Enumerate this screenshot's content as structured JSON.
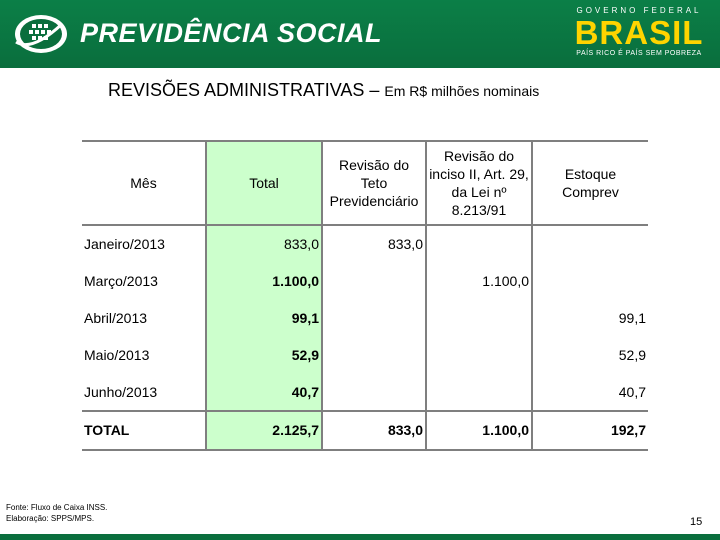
{
  "header": {
    "brand": "PREVIDÊNCIA SOCIAL",
    "gov_top": "GOVERNO FEDERAL",
    "gov_name": "BRASIL",
    "gov_slogan": "PAÍS RICO É PAÍS SEM POBREZA",
    "colors": {
      "green": "#0a6e3d",
      "yellow": "#ffd400",
      "blue": "#1d4aa8"
    }
  },
  "title": {
    "main": "REVISÕES ADMINISTRATIVAS – ",
    "sub": "Em R$ milhões nominais"
  },
  "table": {
    "headers": [
      "Mês",
      "Total",
      "Revisão do Teto Previdenciário",
      "Revisão do inciso II, Art. 29, da Lei nº 8.213/91",
      "Estoque Comprev"
    ],
    "rows": [
      [
        "Janeiro/2013",
        "833,0",
        "833,0",
        "",
        ""
      ],
      [
        "Março/2013",
        "1.100,0",
        "",
        "1.100,0",
        ""
      ],
      [
        "Abril/2013",
        "99,1",
        "",
        "",
        "99,1"
      ],
      [
        "Maio/2013",
        "52,9",
        "",
        "",
        "52,9"
      ],
      [
        "Junho/2013",
        "40,7",
        "",
        "",
        "40,7"
      ]
    ],
    "total_row": [
      "TOTAL",
      "2.125,7",
      "833,0",
      "1.100,0",
      "192,7"
    ],
    "highlight_color": "#ccffcc"
  },
  "footer": {
    "source": "Fonte: Fluxo de Caixa INSS.",
    "elaboration": "Elaboração: SPPS/MPS.",
    "page": "15"
  }
}
